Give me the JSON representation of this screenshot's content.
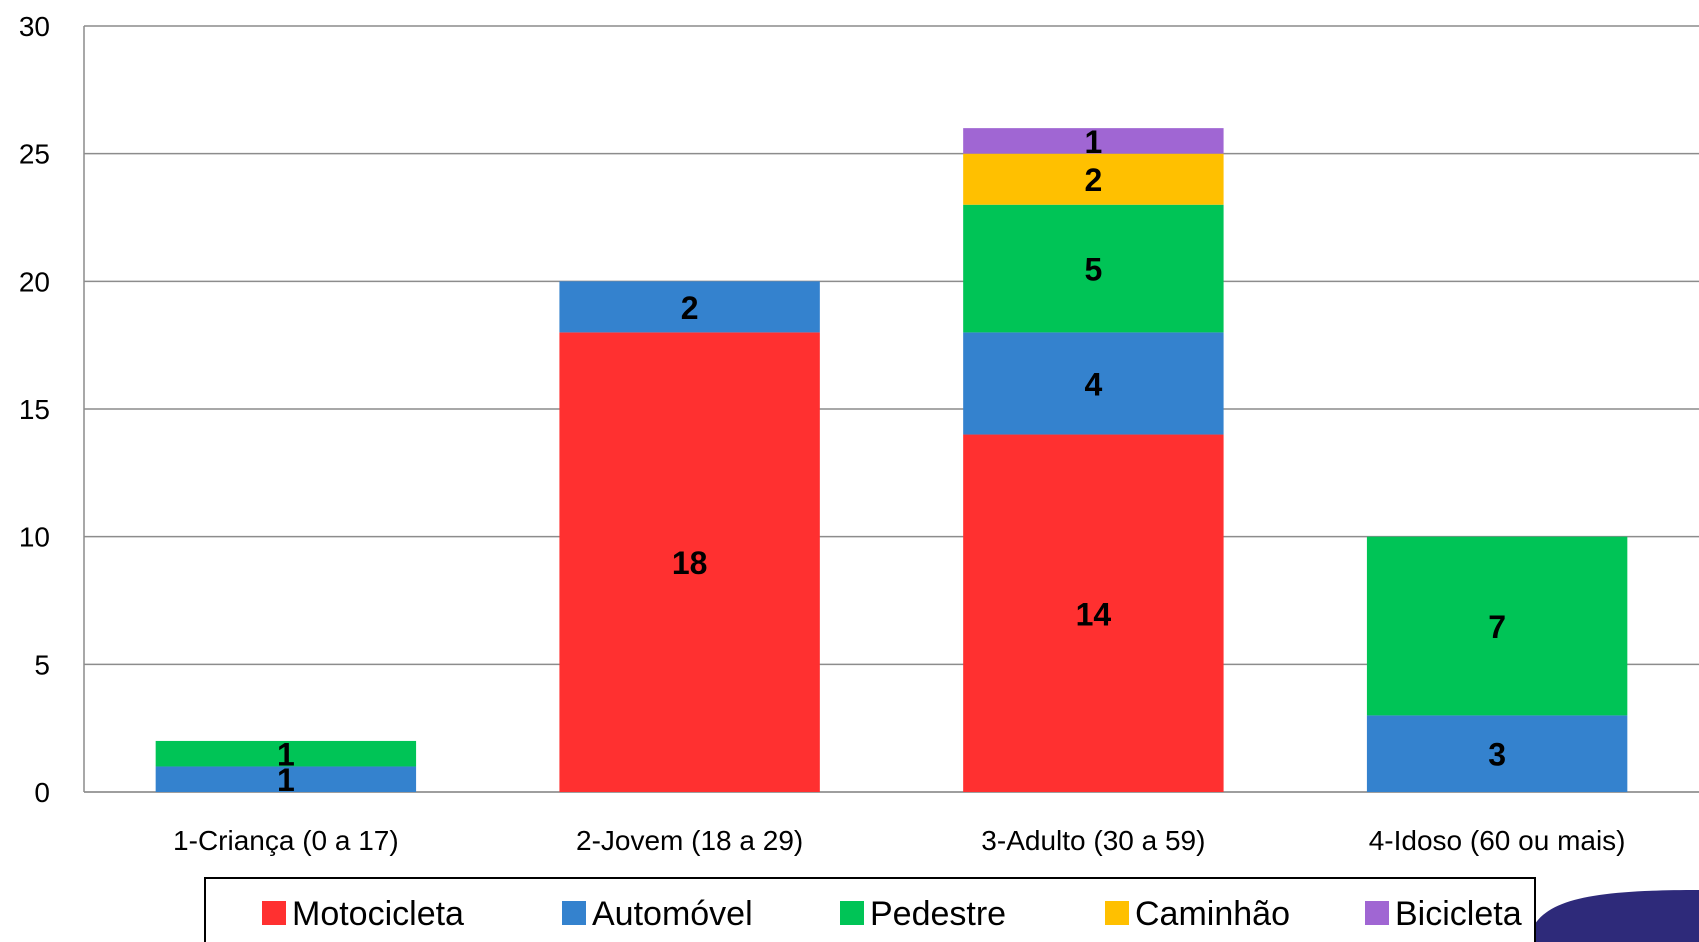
{
  "chart_data": {
    "type": "bar",
    "stacked": true,
    "categories": [
      "1-Criança (0 a 17)",
      "2-Jovem (18 a 29)",
      "3-Adulto (30 a 59)",
      "4-Idoso (60 ou mais)"
    ],
    "series": [
      {
        "name": "Motocicleta",
        "color": "#FF3030",
        "values": [
          0,
          18,
          14,
          0
        ]
      },
      {
        "name": "Automóvel",
        "color": "#3482CE",
        "values": [
          1,
          2,
          4,
          3
        ]
      },
      {
        "name": "Pedestre",
        "color": "#00C456",
        "values": [
          1,
          0,
          5,
          7
        ]
      },
      {
        "name": "Caminhão",
        "color": "#FFC000",
        "values": [
          0,
          0,
          2,
          0
        ]
      },
      {
        "name": "Bicicleta",
        "color": "#A066D3",
        "values": [
          0,
          0,
          1,
          0
        ]
      }
    ],
    "y_ticks": [
      "0",
      "5",
      "10",
      "15",
      "20",
      "25",
      "30"
    ],
    "ylim": [
      0,
      30
    ],
    "grid": true,
    "legend_position": "bottom",
    "decoration_color": "#2E2A7A"
  }
}
